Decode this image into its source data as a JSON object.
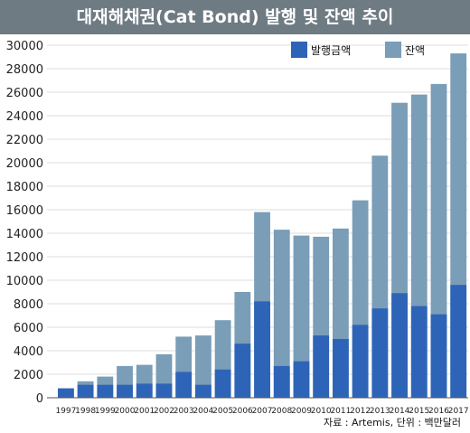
{
  "title": "대재해채권(Cat Bond) 발행 및 잔액 추이",
  "source": "자료 : Artemis, 단위 : 백만달러",
  "colors": {
    "issuance": "#2e64b8",
    "outstanding": "#7a9db8",
    "title_bg": "#6f7b83",
    "grid": "#dddddd"
  },
  "chart_data": {
    "type": "bar",
    "stacked": "overlay",
    "categories": [
      "1997",
      "1998",
      "1999",
      "2000",
      "2001",
      "2002",
      "2003",
      "2004",
      "2005",
      "2006",
      "2007",
      "2008",
      "2009",
      "2010",
      "2011",
      "2012",
      "2013",
      "2014",
      "2015",
      "2016",
      "2017"
    ],
    "series": [
      {
        "name": "발행금액",
        "values": [
          800,
          1100,
          1100,
          1100,
          1200,
          1200,
          2200,
          1100,
          2400,
          4600,
          8200,
          2700,
          3100,
          5300,
          5000,
          6200,
          7600,
          8900,
          7800,
          7100,
          9600
        ]
      },
      {
        "name": "잔액",
        "values": [
          800,
          1400,
          1800,
          2700,
          2800,
          3700,
          5200,
          5300,
          6600,
          9000,
          15800,
          14300,
          13800,
          13700,
          14400,
          16800,
          20600,
          25100,
          25800,
          26700,
          29300
        ]
      }
    ],
    "yticks": [
      "0",
      "2000",
      "4000",
      "6000",
      "8000",
      "10000",
      "12000",
      "14000",
      "16000",
      "18000",
      "20000",
      "22000",
      "24000",
      "26000",
      "28000",
      "30000"
    ],
    "ylim": [
      0,
      30000
    ],
    "legend": "top-right",
    "grid": true
  }
}
